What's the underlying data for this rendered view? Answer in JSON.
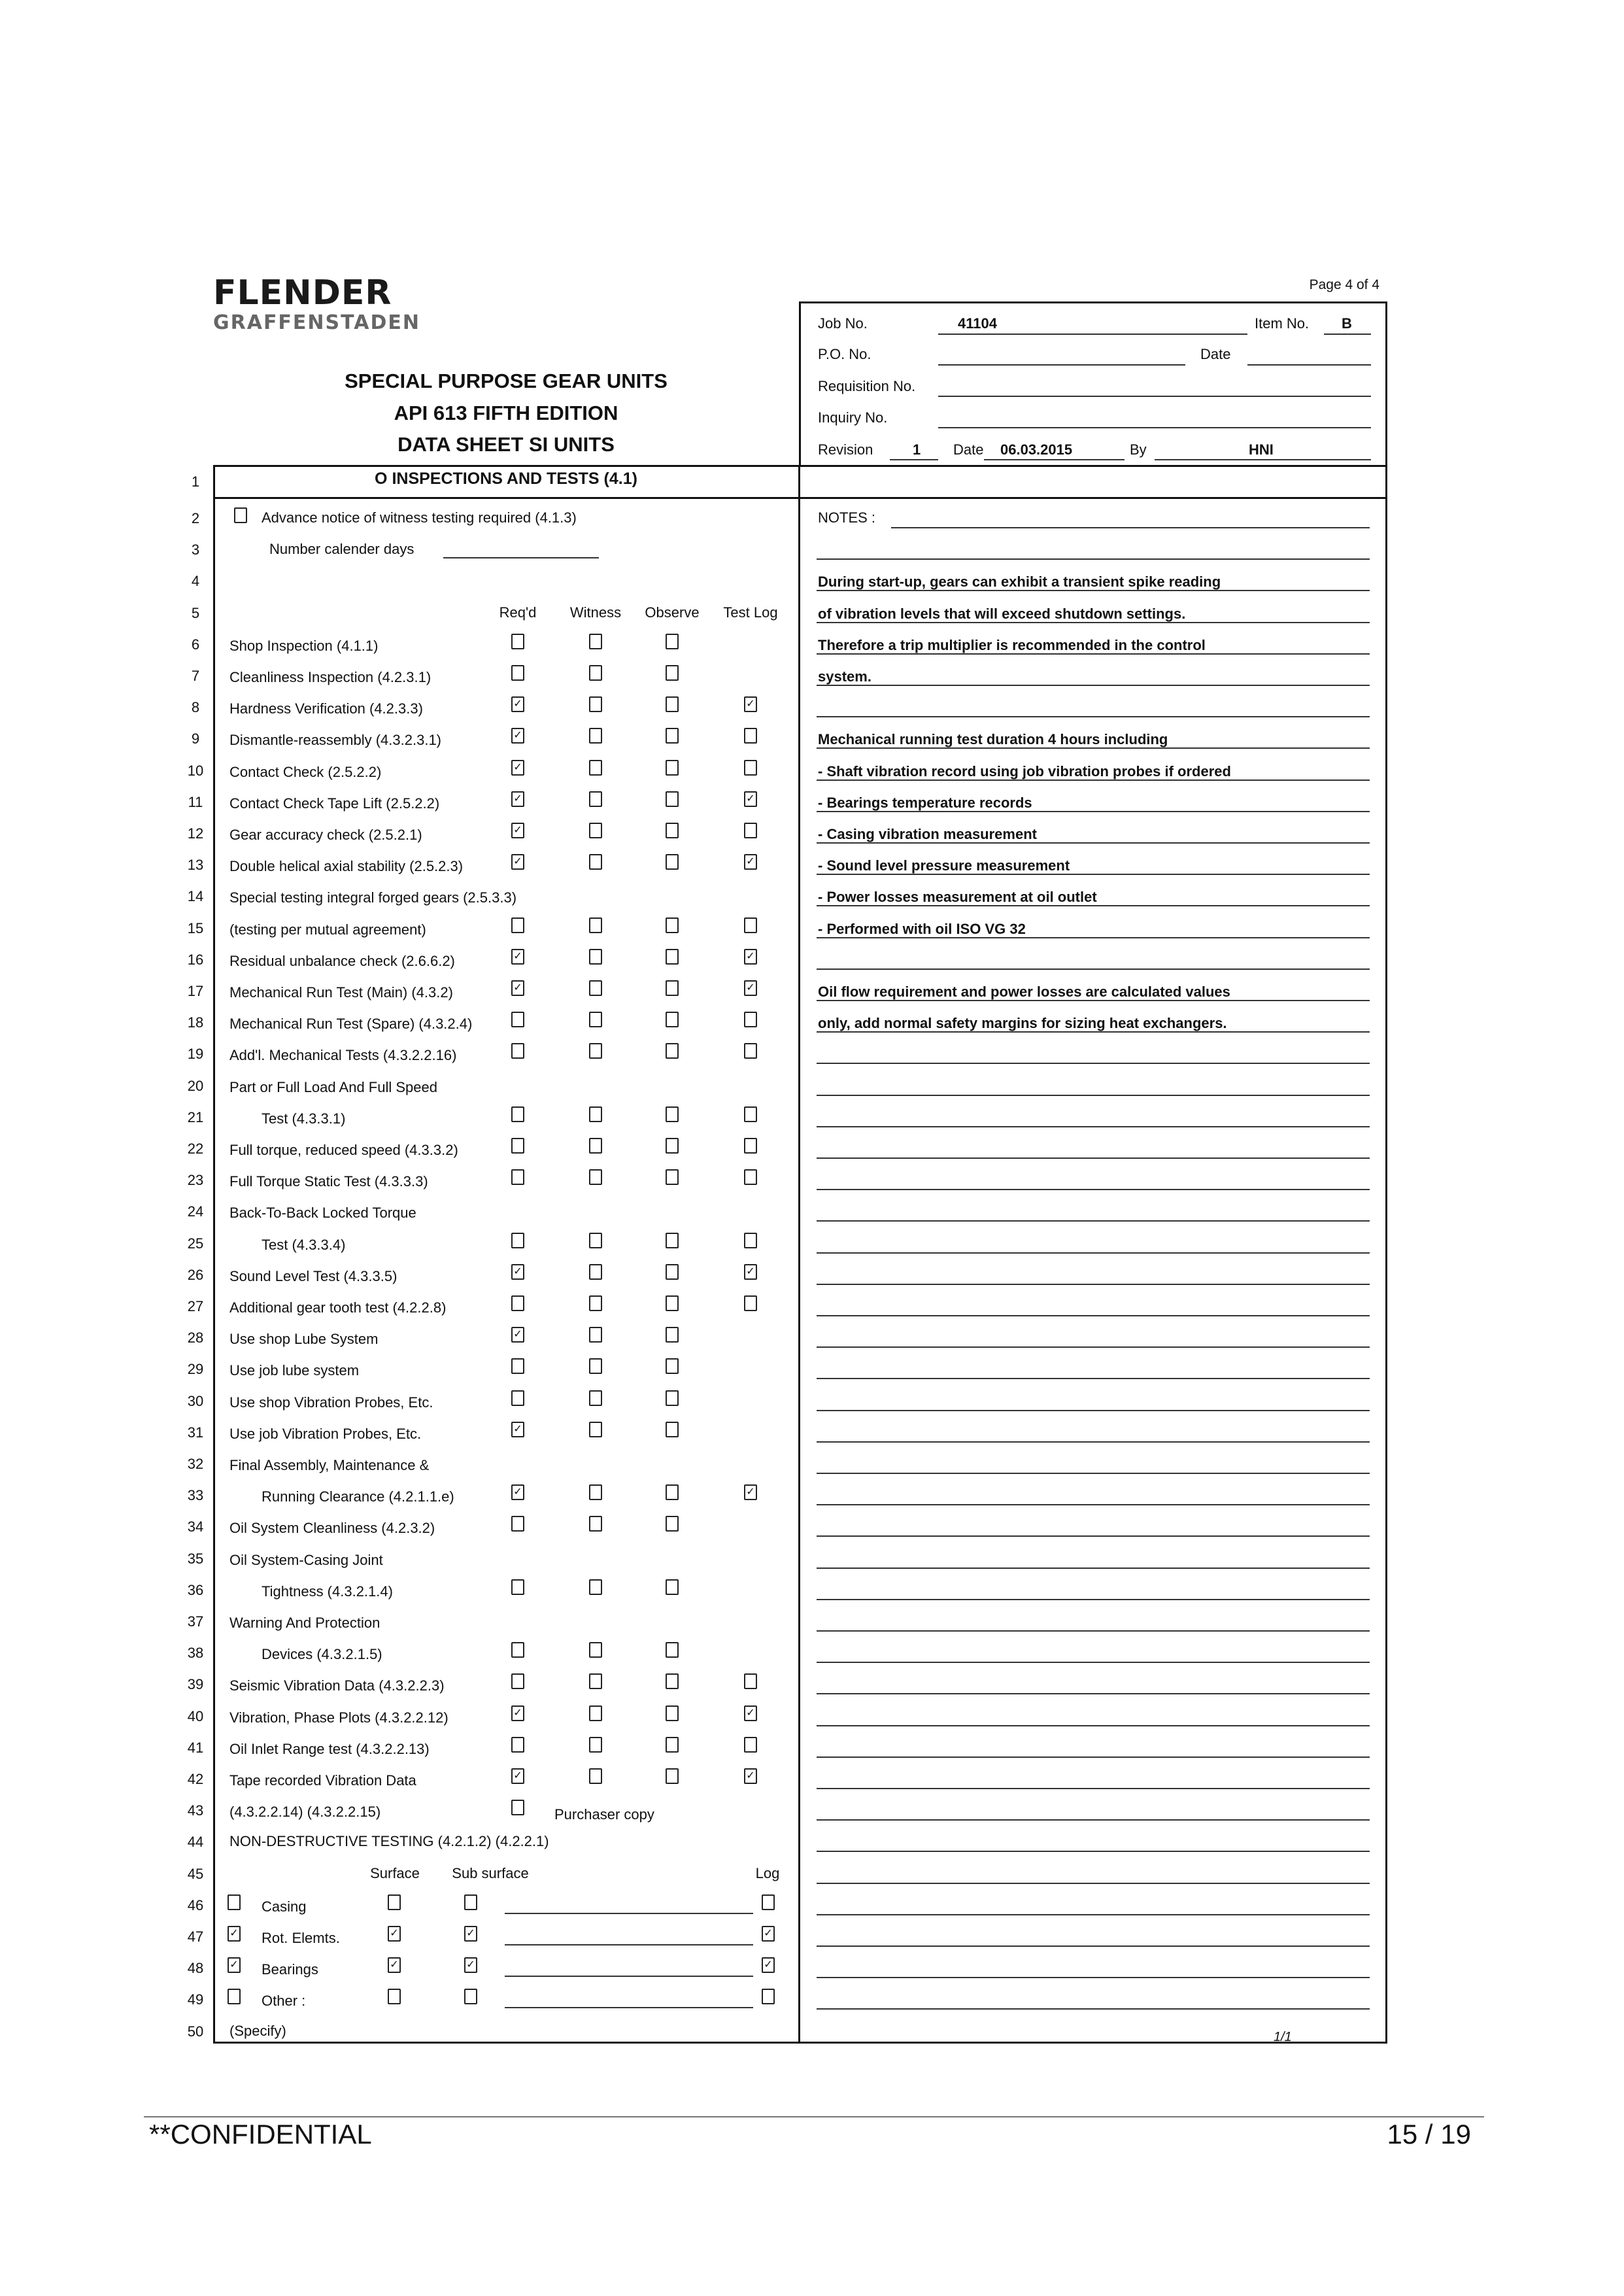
{
  "logo": {
    "brand": "FLENDER",
    "sub": "GRAFFENSTADEN"
  },
  "page_of": "Page 4 of 4",
  "titles": [
    "SPECIAL PURPOSE GEAR UNITS",
    "API 613 FIFTH EDITION",
    "DATA SHEET SI UNITS"
  ],
  "header": {
    "job_label": "Job No.",
    "job_value": "41104",
    "item_label": "Item No.",
    "item_value": "B",
    "po_label": "P.O. No.",
    "po_value": "",
    "date_label": "Date",
    "date_value": "",
    "requisition_label": "Requisition No.",
    "requisition_value": "",
    "inquiry_label": "Inquiry No.",
    "inquiry_value": "",
    "revision_label": "Revision",
    "revision_value": "1",
    "rev_date_label": "Date",
    "rev_date_value": "06.03.2015",
    "by_label": "By",
    "by_value": "HNI"
  },
  "section_title": "O INSPECTIONS AND TESTS (4.1)",
  "advance_notice": {
    "label": "Advance notice of witness testing required (4.1.3)",
    "checked": false
  },
  "calendar_days": {
    "label": "Number calender days",
    "value": ""
  },
  "columns": [
    "Req'd",
    "Witness",
    "Observe",
    "Test Log"
  ],
  "rows": [
    {
      "num": "6",
      "label": "Shop Inspection (4.1.1)",
      "checks": [
        false,
        false,
        false,
        null
      ]
    },
    {
      "num": "7",
      "label": "Cleanliness Inspection (4.2.3.1)",
      "checks": [
        false,
        false,
        false,
        null
      ]
    },
    {
      "num": "8",
      "label": "Hardness Verification (4.2.3.3)",
      "checks": [
        true,
        false,
        false,
        true
      ]
    },
    {
      "num": "9",
      "label": "Dismantle-reassembly (4.3.2.3.1)",
      "checks": [
        true,
        false,
        false,
        false
      ]
    },
    {
      "num": "10",
      "label": "Contact Check (2.5.2.2)",
      "checks": [
        true,
        false,
        false,
        false
      ]
    },
    {
      "num": "11",
      "label": "Contact Check Tape Lift (2.5.2.2)",
      "checks": [
        true,
        false,
        false,
        true
      ]
    },
    {
      "num": "12",
      "label": "Gear accuracy check (2.5.2.1)",
      "checks": [
        true,
        false,
        false,
        false
      ]
    },
    {
      "num": "13",
      "label": "Double helical axial stability (2.5.2.3)",
      "checks": [
        true,
        false,
        false,
        true
      ]
    },
    {
      "num": "14",
      "label": "Special testing integral forged gears (2.5.3.3)",
      "checks": null
    },
    {
      "num": "15",
      "label": "(testing per mutual agreement)",
      "checks": [
        false,
        false,
        false,
        false
      ]
    },
    {
      "num": "16",
      "label": "Residual unbalance check (2.6.6.2)",
      "checks": [
        true,
        false,
        false,
        true
      ]
    },
    {
      "num": "17",
      "label": "Mechanical Run Test (Main) (4.3.2)",
      "checks": [
        true,
        false,
        false,
        true
      ]
    },
    {
      "num": "18",
      "label": "Mechanical Run Test (Spare) (4.3.2.4)",
      "checks": [
        false,
        false,
        false,
        false
      ]
    },
    {
      "num": "19",
      "label": "Add'l. Mechanical Tests (4.3.2.2.16)",
      "checks": [
        false,
        false,
        false,
        false
      ]
    },
    {
      "num": "20",
      "label": "Part or Full Load And Full Speed",
      "checks": null
    },
    {
      "num": "21",
      "label": "Test (4.3.3.1)",
      "indent": true,
      "checks": [
        false,
        false,
        false,
        false
      ]
    },
    {
      "num": "22",
      "label": "Full torque, reduced speed (4.3.3.2)",
      "checks": [
        false,
        false,
        false,
        false
      ]
    },
    {
      "num": "23",
      "label": "Full Torque Static Test (4.3.3.3)",
      "checks": [
        false,
        false,
        false,
        false
      ]
    },
    {
      "num": "24",
      "label": "Back-To-Back Locked Torque",
      "checks": null
    },
    {
      "num": "25",
      "label": "Test (4.3.3.4)",
      "indent": true,
      "checks": [
        false,
        false,
        false,
        false
      ]
    },
    {
      "num": "26",
      "label": "Sound Level Test (4.3.3.5)",
      "checks": [
        true,
        false,
        false,
        true
      ]
    },
    {
      "num": "27",
      "label": "Additional gear tooth test (4.2.2.8)",
      "checks": [
        false,
        false,
        false,
        false
      ]
    },
    {
      "num": "28",
      "label": "Use shop Lube System",
      "checks": [
        true,
        false,
        false,
        null
      ]
    },
    {
      "num": "29",
      "label": "Use job lube system",
      "checks": [
        false,
        false,
        false,
        null
      ]
    },
    {
      "num": "30",
      "label": "Use shop Vibration Probes, Etc.",
      "checks": [
        false,
        false,
        false,
        null
      ]
    },
    {
      "num": "31",
      "label": "Use job Vibration Probes, Etc.",
      "checks": [
        true,
        false,
        false,
        null
      ]
    },
    {
      "num": "32",
      "label": "Final Assembly, Maintenance &",
      "checks": null
    },
    {
      "num": "33",
      "label": "Running Clearance (4.2.1.1.e)",
      "indent": true,
      "checks": [
        true,
        false,
        false,
        true
      ]
    },
    {
      "num": "34",
      "label": "Oil System Cleanliness (4.2.3.2)",
      "checks": [
        false,
        false,
        false,
        null
      ]
    },
    {
      "num": "35",
      "label": "Oil System-Casing Joint",
      "checks": null
    },
    {
      "num": "36",
      "label": "Tightness (4.3.2.1.4)",
      "indent": true,
      "checks": [
        false,
        false,
        false,
        null
      ]
    },
    {
      "num": "37",
      "label": "Warning And Protection",
      "checks": null
    },
    {
      "num": "38",
      "label": "Devices (4.3.2.1.5)",
      "indent": true,
      "checks": [
        false,
        false,
        false,
        null
      ]
    },
    {
      "num": "39",
      "label": "Seismic Vibration Data (4.3.2.2.3)",
      "checks": [
        false,
        false,
        false,
        false
      ]
    },
    {
      "num": "40",
      "label": "Vibration, Phase Plots (4.3.2.2.12)",
      "checks": [
        true,
        false,
        false,
        true
      ]
    },
    {
      "num": "41",
      "label": "Oil Inlet Range test (4.3.2.2.13)",
      "checks": [
        false,
        false,
        false,
        false
      ]
    },
    {
      "num": "42",
      "label": "Tape recorded Vibration Data",
      "checks": [
        true,
        false,
        false,
        true
      ]
    },
    {
      "num": "43",
      "label": "(4.3.2.2.14) (4.3.2.2.15)",
      "checks": [
        false,
        null,
        null,
        null
      ],
      "extra": "Purchaser copy"
    }
  ],
  "ndt": {
    "title": "NON-DESTRUCTIVE TESTING (4.2.1.2) (4.2.2.1)",
    "columns": [
      "Surface",
      "Sub surface",
      "Log"
    ],
    "rows": [
      {
        "num": "46",
        "label": "Casing",
        "selected": false,
        "surface": false,
        "subsurface": false,
        "log": false,
        "value": ""
      },
      {
        "num": "47",
        "label": "Rot. Elemts.",
        "selected": true,
        "surface": true,
        "subsurface": true,
        "log": true,
        "value": ""
      },
      {
        "num": "48",
        "label": "Bearings",
        "selected": true,
        "surface": true,
        "subsurface": true,
        "log": true,
        "value": ""
      },
      {
        "num": "49",
        "label": "Other :",
        "selected": false,
        "surface": false,
        "subsurface": false,
        "log": false,
        "value": ""
      }
    ],
    "specify": "(Specify)"
  },
  "notes": {
    "label": "NOTES :",
    "lines": {
      "4": "During start-up, gears can exhibit a transient spike reading",
      "5": "of vibration levels that will exceed shutdown settings.",
      "6": "Therefore a trip multiplier is recommended in the control",
      "7": "system.",
      "9": "Mechanical running test duration 4 hours including",
      "10": "- Shaft vibration record using job vibration probes if ordered",
      "11": "- Bearings temperature records",
      "12": "- Casing vibration measurement",
      "13": "- Sound level pressure measurement",
      "14": "- Power losses measurement at oil outlet",
      "15": "- Performed with oil ISO VG 32",
      "17": "Oil flow requirement and power losses are calculated values",
      "18": "only, add normal safety margins for sizing heat exchangers."
    }
  },
  "sheet_mark": "1/1",
  "footer": {
    "left": "**CONFIDENTIAL",
    "right": "15 / 19"
  }
}
